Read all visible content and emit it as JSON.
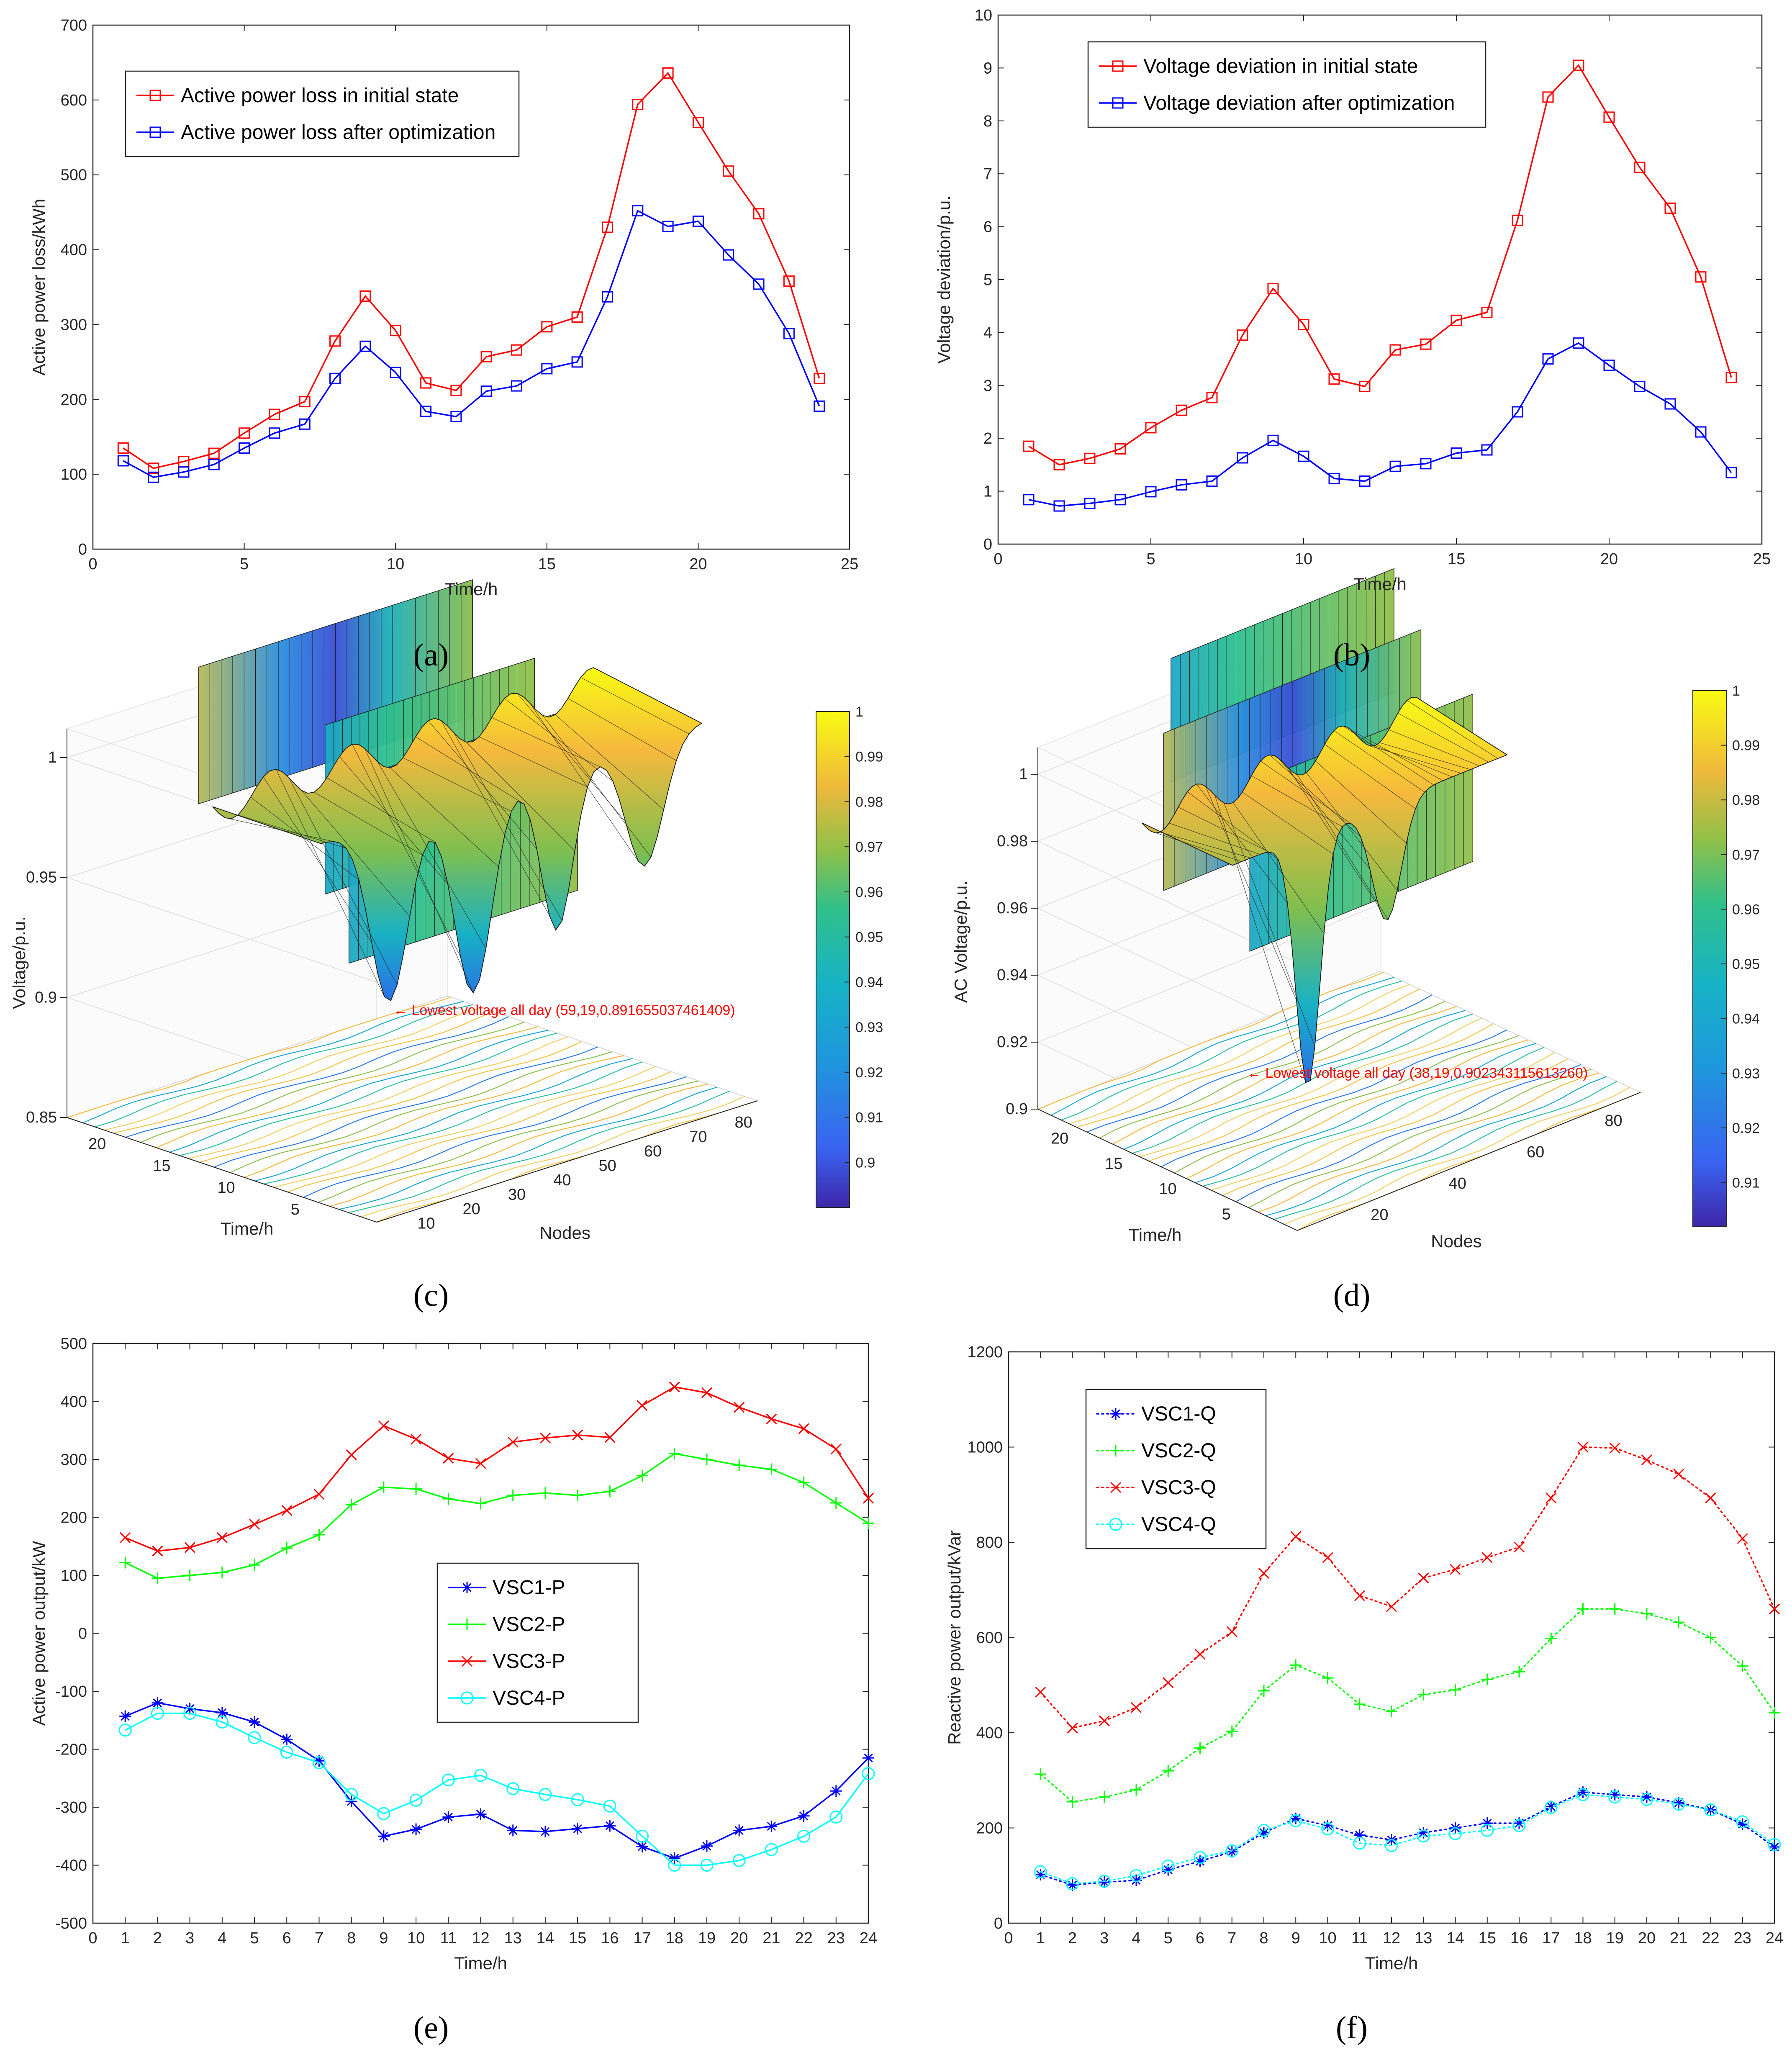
{
  "chart_data": [
    {
      "id": "a",
      "type": "line",
      "caption": "(a)",
      "xlabel": "Time/h",
      "ylabel": "Active power loss/kWh",
      "xlim": [
        0,
        25
      ],
      "ylim": [
        0,
        700
      ],
      "xticks": [
        0,
        5,
        10,
        15,
        20,
        25
      ],
      "yticks": [
        0,
        100,
        200,
        300,
        400,
        500,
        600,
        700
      ],
      "legend_position": "top-left",
      "x": [
        1,
        2,
        3,
        4,
        5,
        6,
        7,
        8,
        9,
        10,
        11,
        12,
        13,
        14,
        15,
        16,
        17,
        18,
        19,
        20,
        21,
        22,
        23,
        24
      ],
      "series": [
        {
          "name": "Active power loss in initial state",
          "color": "#ff0000",
          "marker": "square",
          "values": [
            135,
            108,
            117,
            128,
            155,
            180,
            197,
            278,
            338,
            292,
            222,
            212,
            257,
            266,
            297,
            310,
            430,
            594,
            636,
            570,
            505,
            448,
            358,
            228
          ]
        },
        {
          "name": "Active power loss after optimization",
          "color": "#0000ff",
          "marker": "square",
          "values": [
            118,
            96,
            103,
            113,
            135,
            155,
            167,
            228,
            271,
            236,
            184,
            177,
            211,
            218,
            241,
            250,
            337,
            452,
            431,
            438,
            393,
            354,
            288,
            191
          ]
        }
      ]
    },
    {
      "id": "b",
      "type": "line",
      "caption": "(b)",
      "xlabel": "Time/h",
      "ylabel": "Voltage deviation/p.u.",
      "xlim": [
        0,
        25
      ],
      "ylim": [
        0,
        10
      ],
      "xticks": [
        0,
        5,
        10,
        15,
        20,
        25
      ],
      "yticks": [
        0,
        1,
        2,
        3,
        4,
        5,
        6,
        7,
        8,
        9,
        10
      ],
      "legend_position": "top-left",
      "x": [
        1,
        2,
        3,
        4,
        5,
        6,
        7,
        8,
        9,
        10,
        11,
        12,
        13,
        14,
        15,
        16,
        17,
        18,
        19,
        20,
        21,
        22,
        23,
        24
      ],
      "series": [
        {
          "name": "Voltage deviation in initial state",
          "color": "#ff0000",
          "marker": "square",
          "values": [
            1.85,
            1.5,
            1.62,
            1.8,
            2.2,
            2.53,
            2.77,
            3.95,
            4.83,
            4.15,
            3.12,
            2.98,
            3.67,
            3.78,
            4.23,
            4.38,
            6.12,
            8.45,
            9.05,
            8.07,
            7.12,
            6.35,
            5.05,
            3.15
          ]
        },
        {
          "name": "Voltage deviation after optimization",
          "color": "#0000ff",
          "marker": "square",
          "values": [
            0.84,
            0.72,
            0.77,
            0.84,
            0.99,
            1.12,
            1.19,
            1.63,
            1.96,
            1.66,
            1.24,
            1.19,
            1.47,
            1.52,
            1.72,
            1.78,
            2.5,
            3.5,
            3.8,
            3.38,
            2.98,
            2.65,
            2.12,
            1.35
          ]
        }
      ]
    },
    {
      "id": "c",
      "type": "surface3d",
      "caption": "(c)",
      "xlabel": "Nodes",
      "ylabel": "Time/h",
      "zlabel": "Voltage/p.u.",
      "zticks": [
        "0.85",
        "0.9",
        "0.95",
        "1"
      ],
      "node_ticks": [
        "10",
        "20",
        "30",
        "40",
        "50",
        "60",
        "70",
        "80"
      ],
      "time_ticks": [
        "5",
        "10",
        "15",
        "20"
      ],
      "annotation": "← Lowest voltage all day (59,19,0.891655037461409)",
      "colorbar_ticks": [
        "0.9",
        "0.91",
        "0.92",
        "0.93",
        "0.94",
        "0.95",
        "0.96",
        "0.97",
        "0.98",
        "0.99",
        "1"
      ],
      "colorbar_range": [
        0.89,
        1.0
      ]
    },
    {
      "id": "d",
      "type": "surface3d",
      "caption": "(d)",
      "xlabel": "Nodes",
      "ylabel": "Time/h",
      "zlabel": "AC Voltage/p.u.",
      "zticks": [
        "0.9",
        "0.92",
        "0.94",
        "0.96",
        "0.98",
        "1"
      ],
      "node_ticks": [
        "20",
        "40",
        "60",
        "80"
      ],
      "time_ticks": [
        "5",
        "10",
        "15",
        "20"
      ],
      "annotation": "← Lowest voltage all day (38,19,0.902343115613260)",
      "colorbar_ticks": [
        "0.91",
        "0.92",
        "0.93",
        "0.94",
        "0.95",
        "0.96",
        "0.97",
        "0.98",
        "0.99",
        "1"
      ],
      "colorbar_range": [
        0.902,
        1.0
      ]
    },
    {
      "id": "e",
      "type": "line",
      "caption": "(e)",
      "xlabel": "Time/h",
      "ylabel": "Active power output/kW",
      "xlim": [
        0,
        24
      ],
      "ylim": [
        -500,
        500
      ],
      "xticks": [
        0,
        1,
        2,
        3,
        4,
        5,
        6,
        7,
        8,
        9,
        10,
        11,
        12,
        13,
        14,
        15,
        16,
        17,
        18,
        19,
        20,
        21,
        22,
        23,
        24
      ],
      "yticks": [
        -500,
        -400,
        -300,
        -200,
        -100,
        0,
        100,
        200,
        300,
        400,
        500
      ],
      "legend_position": "center",
      "x": [
        1,
        2,
        3,
        4,
        5,
        6,
        7,
        8,
        9,
        10,
        11,
        12,
        13,
        14,
        15,
        16,
        17,
        18,
        19,
        20,
        21,
        22,
        23,
        24
      ],
      "series": [
        {
          "name": "VSC1-P",
          "color": "#0000ff",
          "marker": "asterisk",
          "dash": "solid",
          "values": [
            -143,
            -120,
            -130,
            -137,
            -153,
            -183,
            -220,
            -290,
            -350,
            -338,
            -317,
            -312,
            -340,
            -342,
            -337,
            -332,
            -368,
            -388,
            -367,
            -340,
            -333,
            -315,
            -272,
            -215
          ]
        },
        {
          "name": "VSC2-P",
          "color": "#00ff00",
          "marker": "plus",
          "dash": "solid",
          "values": [
            122,
            95,
            100,
            105,
            118,
            147,
            170,
            222,
            252,
            249,
            232,
            224,
            238,
            242,
            238,
            245,
            272,
            310,
            300,
            290,
            283,
            260,
            225,
            190
          ]
        },
        {
          "name": "VSC3-P",
          "color": "#ff0000",
          "marker": "x",
          "dash": "solid",
          "values": [
            165,
            142,
            148,
            165,
            188,
            212,
            240,
            308,
            358,
            335,
            302,
            293,
            330,
            337,
            342,
            338,
            393,
            425,
            415,
            390,
            370,
            353,
            318,
            233
          ]
        },
        {
          "name": "VSC4-P",
          "color": "#00ffff",
          "marker": "circle",
          "dash": "solid",
          "values": [
            -167,
            -138,
            -138,
            -153,
            -180,
            -205,
            -223,
            -278,
            -311,
            -288,
            -253,
            -245,
            -268,
            -278,
            -287,
            -298,
            -350,
            -400,
            -400,
            -392,
            -373,
            -350,
            -317,
            -242
          ]
        }
      ]
    },
    {
      "id": "f",
      "type": "line",
      "caption": "(f)",
      "xlabel": "Time/h",
      "ylabel": "Reactive power output/kVar",
      "xlim": [
        0,
        24
      ],
      "ylim": [
        0,
        1200
      ],
      "xticks": [
        0,
        1,
        2,
        3,
        4,
        5,
        6,
        7,
        8,
        9,
        10,
        11,
        12,
        13,
        14,
        15,
        16,
        17,
        18,
        19,
        20,
        21,
        22,
        23,
        24
      ],
      "yticks": [
        0,
        200,
        400,
        600,
        800,
        1000,
        1200
      ],
      "legend_position": "top-left",
      "x": [
        1,
        2,
        3,
        4,
        5,
        6,
        7,
        8,
        9,
        10,
        11,
        12,
        13,
        14,
        15,
        16,
        17,
        18,
        19,
        20,
        21,
        22,
        23,
        24
      ],
      "series": [
        {
          "name": "VSC1-Q",
          "color": "#0000ff",
          "marker": "asterisk",
          "dash": "dotted",
          "values": [
            102,
            80,
            86,
            90,
            112,
            130,
            150,
            190,
            220,
            205,
            185,
            175,
            190,
            200,
            210,
            210,
            245,
            275,
            270,
            265,
            253,
            238,
            208,
            160
          ]
        },
        {
          "name": "VSC2-Q",
          "color": "#00ff00",
          "marker": "plus",
          "dash": "dotted",
          "values": [
            313,
            255,
            265,
            280,
            320,
            368,
            403,
            488,
            542,
            515,
            460,
            445,
            480,
            490,
            512,
            528,
            598,
            660,
            660,
            650,
            632,
            600,
            540,
            442
          ]
        },
        {
          "name": "VSC3-Q",
          "color": "#ff0000",
          "marker": "x",
          "dash": "dotted",
          "values": [
            485,
            410,
            425,
            453,
            505,
            565,
            612,
            735,
            812,
            768,
            688,
            665,
            725,
            743,
            768,
            790,
            893,
            1000,
            998,
            973,
            943,
            893,
            808,
            660
          ]
        },
        {
          "name": "VSC4-Q",
          "color": "#00ffff",
          "marker": "circle",
          "dash": "dotted",
          "values": [
            108,
            83,
            88,
            100,
            120,
            138,
            152,
            195,
            215,
            198,
            168,
            163,
            183,
            188,
            195,
            205,
            243,
            270,
            265,
            260,
            250,
            238,
            213,
            165
          ]
        }
      ]
    }
  ]
}
